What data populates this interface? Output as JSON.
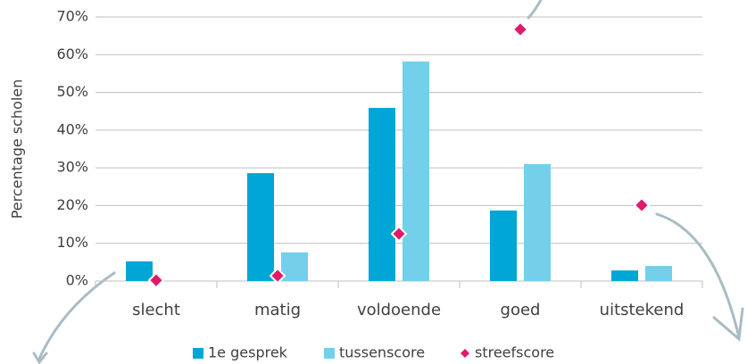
{
  "chart_data": {
    "type": "bar",
    "y_label": "Percentage scholen",
    "categories": [
      "slecht",
      "matig",
      "voldoende",
      "goed",
      "uitstekend"
    ],
    "series": [
      {
        "name": "1e gesprek",
        "type": "bar",
        "color": "#00a6d6",
        "values": [
          5.2,
          28.6,
          45.9,
          18.7,
          2.8
        ]
      },
      {
        "name": "tussenscore",
        "type": "bar",
        "color": "#74cfea",
        "values": [
          0,
          7.6,
          58.2,
          31,
          4
        ]
      },
      {
        "name": "streefscore",
        "type": "scatter",
        "color": "#e0196b",
        "values": [
          0.2,
          1.4,
          12.5,
          66.7,
          20.1
        ]
      }
    ],
    "ylim": [
      0,
      70
    ],
    "yticks": [
      {
        "value": 0,
        "label": "0%"
      },
      {
        "value": 10,
        "label": "10%"
      },
      {
        "value": 20,
        "label": "20%"
      },
      {
        "value": 30,
        "label": "30%"
      },
      {
        "value": 40,
        "label": "40%"
      },
      {
        "value": 50,
        "label": "50%"
      },
      {
        "value": 60,
        "label": "60%"
      },
      {
        "value": 70,
        "label": "70%"
      }
    ],
    "grid": true,
    "legend": "bottom"
  }
}
